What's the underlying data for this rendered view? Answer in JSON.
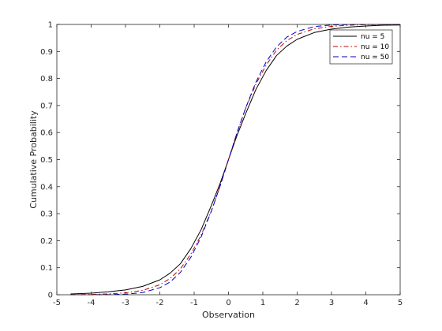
{
  "chart_data": {
    "type": "line",
    "title": "",
    "xlabel": "Observation",
    "ylabel": "Cumulative Probability",
    "xlim": [
      -5,
      5
    ],
    "ylim": [
      0,
      1
    ],
    "xticks": [
      -5,
      -4,
      -3,
      -2,
      -1,
      0,
      1,
      2,
      3,
      4,
      5
    ],
    "yticks": [
      0,
      0.1,
      0.2,
      0.3,
      0.4,
      0.5,
      0.6,
      0.7,
      0.8,
      0.9,
      1
    ],
    "xtick_labels": [
      "-5",
      "-4",
      "-3",
      "-2",
      "-1",
      "0",
      "1",
      "2",
      "3",
      "4",
      "5"
    ],
    "ytick_labels": [
      "0",
      "0.1",
      "0.2",
      "0.3",
      "0.4",
      "0.5",
      "0.6",
      "0.7",
      "0.8",
      "0.9",
      "1"
    ],
    "grid": false,
    "box": true,
    "legend_position": "top-right",
    "series": [
      {
        "name": "nu = 5",
        "color": "#000000",
        "dash": "solid",
        "x": [
          -4.6,
          -4.0,
          -3.5,
          -3.0,
          -2.5,
          -2.0,
          -1.7,
          -1.4,
          -1.1,
          -0.8,
          -0.5,
          -0.25,
          0.0,
          0.25,
          0.5,
          0.8,
          1.1,
          1.4,
          1.7,
          2.0,
          2.5,
          3.0,
          3.5,
          4.0,
          4.5,
          5.0
        ],
        "y": [
          0.003,
          0.006,
          0.011,
          0.018,
          0.031,
          0.055,
          0.08,
          0.115,
          0.17,
          0.24,
          0.33,
          0.41,
          0.5,
          0.59,
          0.67,
          0.76,
          0.83,
          0.885,
          0.92,
          0.945,
          0.97,
          0.983,
          0.99,
          0.994,
          0.997,
          0.998
        ]
      },
      {
        "name": "nu = 10",
        "color": "#c00000",
        "dash": "dashdot",
        "x": [
          -4.6,
          -4.0,
          -3.5,
          -3.0,
          -2.5,
          -2.0,
          -1.7,
          -1.4,
          -1.1,
          -0.8,
          -0.5,
          -0.25,
          0.0,
          0.25,
          0.5,
          0.8,
          1.1,
          1.4,
          1.7,
          2.0,
          2.5,
          3.0,
          3.5,
          4.0,
          4.5,
          5.0
        ],
        "y": [
          0.0005,
          0.0012,
          0.003,
          0.007,
          0.016,
          0.037,
          0.06,
          0.096,
          0.15,
          0.22,
          0.31,
          0.4,
          0.5,
          0.6,
          0.69,
          0.78,
          0.85,
          0.905,
          0.94,
          0.963,
          0.984,
          0.993,
          0.997,
          0.999,
          0.9995,
          1.0
        ]
      },
      {
        "name": "nu = 50",
        "color": "#0000c8",
        "dash": "dash",
        "x": [
          -4.6,
          -4.0,
          -3.5,
          -3.0,
          -2.5,
          -2.0,
          -1.7,
          -1.4,
          -1.1,
          -0.8,
          -0.5,
          -0.25,
          0.0,
          0.25,
          0.5,
          0.8,
          1.1,
          1.4,
          1.7,
          2.0,
          2.5,
          3.0,
          3.5,
          4.0,
          4.5,
          5.0
        ],
        "y": [
          0.0,
          0.0001,
          0.0005,
          0.002,
          0.008,
          0.026,
          0.047,
          0.083,
          0.138,
          0.213,
          0.309,
          0.4,
          0.5,
          0.6,
          0.691,
          0.787,
          0.862,
          0.917,
          0.953,
          0.974,
          0.992,
          0.998,
          0.9995,
          0.9999,
          1.0,
          1.0
        ]
      }
    ]
  }
}
